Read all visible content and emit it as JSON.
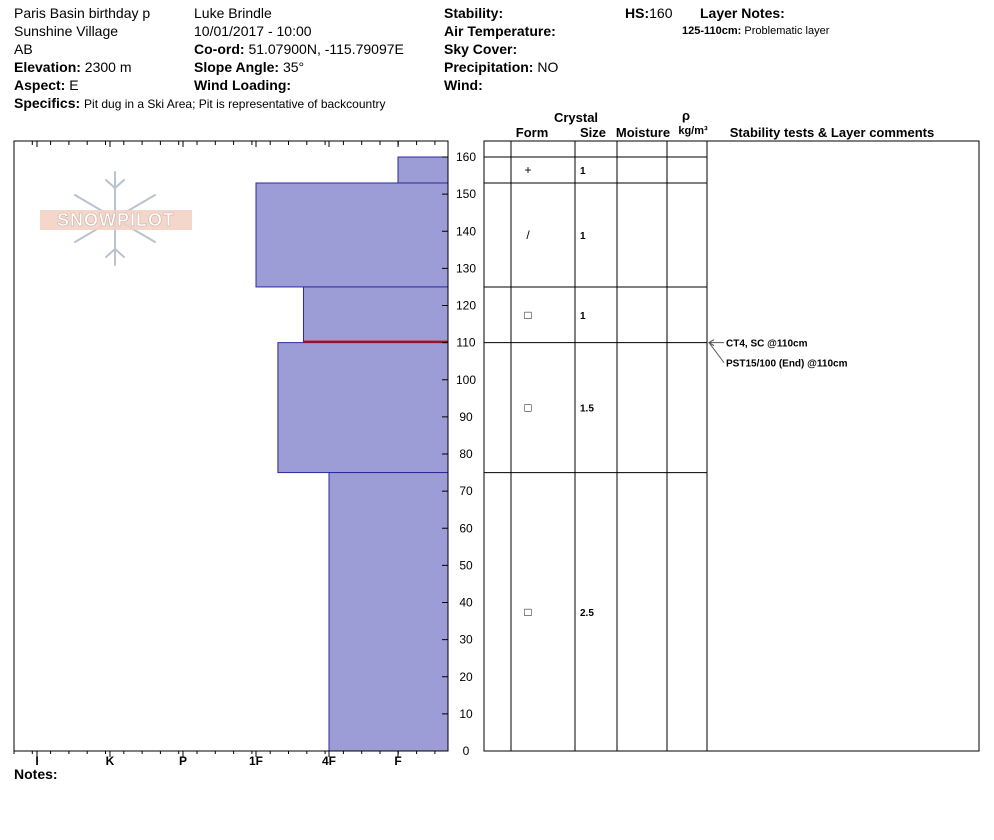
{
  "header": {
    "pit_name": "Paris Basin birthday p",
    "location": "Sunshine Village",
    "region": "AB",
    "elevation_label": "Elevation:",
    "elevation_value": "2300 m",
    "aspect_label": "Aspect:",
    "aspect_value": "E",
    "specifics_label": "Specifics:",
    "specifics_value": "Pit dug in a Ski Area; Pit is representative of backcountry",
    "observer": "Luke Brindle",
    "datetime": "10/01/2017 - 10:00",
    "coord_label": "Co-ord:",
    "coord_value": "51.07900N, -115.79097E",
    "slope_label": "Slope Angle:",
    "slope_value": "35°",
    "wind_loading_label": "Wind Loading:",
    "wind_loading_value": "",
    "stability_label": "Stability:",
    "stability_value": "",
    "air_temp_label": "Air Temperature:",
    "air_temp_value": "",
    "sky_label": "Sky Cover:",
    "sky_value": "",
    "precip_label": "Precipitation:",
    "precip_value": "NO",
    "wind_label": "Wind:",
    "wind_value": "",
    "hs_label": "HS:",
    "hs_value": "160",
    "layer_notes_label": "Layer Notes:",
    "layer_note_range": "125-110cm:",
    "layer_note_text": "Problematic layer",
    "notes_label": "Notes:"
  },
  "columns": {
    "crystal": "Crystal",
    "form": "Form",
    "size": "Size",
    "moisture": "Moisture",
    "rho": "ρ",
    "density_unit": "kg/m³",
    "stability": "Stability tests & Layer comments"
  },
  "logo_text": "SNOWPILOT",
  "colors": {
    "layer_fill": "#9c9cd6",
    "layer_stroke": "#2a2a9c",
    "weak_layer": "#cc0000"
  },
  "chart_data": {
    "type": "bar",
    "hardness_categories": [
      "I",
      "K",
      "P",
      "1F",
      "4F",
      "F"
    ],
    "height_ticks": [
      0,
      10,
      20,
      30,
      40,
      50,
      60,
      70,
      80,
      90,
      100,
      110,
      120,
      130,
      140,
      150,
      160
    ],
    "ylim": [
      0,
      160
    ],
    "layers": [
      {
        "top": 160,
        "bottom": 153,
        "hardness": 5.0,
        "form": "+",
        "size": "1"
      },
      {
        "top": 153,
        "bottom": 125,
        "hardness": 3.0,
        "form": "/",
        "size": "1"
      },
      {
        "top": 125,
        "bottom": 110,
        "hardness": 3.65,
        "form": "□",
        "size": "1"
      },
      {
        "top": 110,
        "bottom": 75,
        "hardness": 3.3,
        "form": "□",
        "size": "1.5"
      },
      {
        "top": 75,
        "bottom": 0,
        "hardness": 4.0,
        "form": "□",
        "size": "2.5"
      }
    ],
    "weak_layer_depth": 110,
    "stability_tests": [
      {
        "depth": 110,
        "text": "CT4, SC @110cm"
      },
      {
        "depth": 110,
        "text": "PST15/100 (End) @110cm"
      }
    ]
  }
}
